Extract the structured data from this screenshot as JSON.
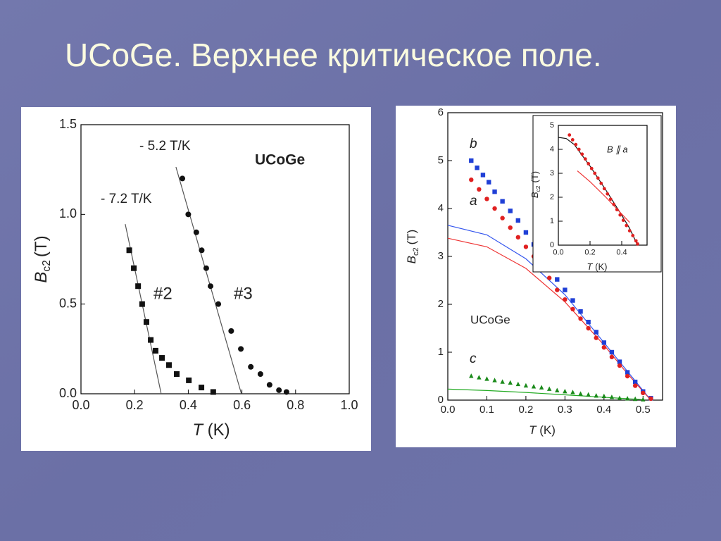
{
  "title": "UCoGe. Верхнее критическое поле.",
  "chart_data": [
    {
      "type": "scatter",
      "xlim": [
        0,
        1
      ],
      "ylim": [
        0,
        1.5
      ],
      "xticks": [
        {
          "value": 0,
          "label": "0.0"
        },
        {
          "value": 0.2,
          "label": "0.2"
        },
        {
          "value": 0.4,
          "label": "0.4"
        },
        {
          "value": 0.6,
          "label": "0.6"
        },
        {
          "value": 0.8,
          "label": "0.8"
        },
        {
          "value": 1,
          "label": "1.0"
        }
      ],
      "yticks": [
        {
          "value": 0,
          "label": "0.0"
        },
        {
          "value": 0.5,
          "label": "0.5"
        },
        {
          "value": 1,
          "label": "1.0"
        },
        {
          "value": 1.5,
          "label": "1.5"
        }
      ],
      "xlabel": {
        "symbol": "T",
        "unit": "(K)"
      },
      "ylabel": {
        "symbol": "B",
        "subscript": "c2",
        "unit": "(T)"
      },
      "series": [
        {
          "name": "#2",
          "color": "#111111",
          "marker": "square",
          "x": [
            0.18,
            0.197,
            0.213,
            0.228,
            0.244,
            0.26,
            0.278,
            0.302,
            0.328,
            0.357,
            0.402,
            0.449,
            0.493
          ],
          "values": [
            0.8,
            0.7,
            0.6,
            0.5,
            0.4,
            0.3,
            0.24,
            0.2,
            0.16,
            0.11,
            0.075,
            0.035,
            0.01
          ]
        },
        {
          "name": "#3",
          "color": "#111111",
          "marker": "circle",
          "x": [
            0.378,
            0.4,
            0.43,
            0.45,
            0.467,
            0.483,
            0.512,
            0.56,
            0.596,
            0.633,
            0.669,
            0.703,
            0.738,
            0.766
          ],
          "values": [
            1.2,
            1.0,
            0.9,
            0.8,
            0.7,
            0.6,
            0.5,
            0.35,
            0.25,
            0.15,
            0.11,
            0.05,
            0.02,
            0.01
          ]
        }
      ],
      "lines": [
        {
          "color": "#555555",
          "x": [
            0.165,
            0.299
          ],
          "y": [
            0.946,
            0
          ]
        },
        {
          "color": "#555555",
          "x": [
            0.354,
            0.598
          ],
          "y": [
            1.264,
            0
          ]
        }
      ],
      "annotations": [
        "- 5.2 T/K",
        "- 7.2 T/K",
        "UCoGe"
      ]
    },
    {
      "type": "scatter",
      "xlim": [
        0,
        0.55
      ],
      "ylim": [
        0,
        6
      ],
      "xticks": [
        {
          "value": 0,
          "label": "0.0"
        },
        {
          "value": 0.1,
          "label": "0.1"
        },
        {
          "value": 0.2,
          "label": "0.2"
        },
        {
          "value": 0.3,
          "label": "0.3"
        },
        {
          "value": 0.4,
          "label": "0.4"
        },
        {
          "value": 0.5,
          "label": "0.5"
        }
      ],
      "yticks": [
        0,
        1,
        2,
        3,
        4,
        5,
        6
      ],
      "xlabel": {
        "symbol": "T",
        "unit": "(K)"
      },
      "ylabel": {
        "symbol": "B",
        "subscript": "c2",
        "unit": "(T)"
      },
      "series": [
        {
          "name": "b",
          "color": "#1f3fd6",
          "marker": "square",
          "x": [
            0.06,
            0.075,
            0.09,
            0.105,
            0.12,
            0.14,
            0.16,
            0.18,
            0.2,
            0.22,
            0.24,
            0.26,
            0.28,
            0.3,
            0.32,
            0.34,
            0.36,
            0.38,
            0.4,
            0.42,
            0.44,
            0.46,
            0.48,
            0.5,
            0.52
          ],
          "values": [
            5.0,
            4.85,
            4.7,
            4.55,
            4.35,
            4.15,
            3.95,
            3.75,
            3.5,
            3.25,
            3.0,
            2.75,
            2.52,
            2.3,
            2.08,
            1.85,
            1.63,
            1.42,
            1.2,
            1.0,
            0.8,
            0.58,
            0.38,
            0.18,
            0.04
          ]
        },
        {
          "name": "a",
          "color": "#e02020",
          "marker": "circle",
          "x": [
            0.06,
            0.08,
            0.1,
            0.12,
            0.14,
            0.16,
            0.18,
            0.2,
            0.22,
            0.24,
            0.26,
            0.28,
            0.3,
            0.32,
            0.34,
            0.36,
            0.38,
            0.4,
            0.42,
            0.44,
            0.46,
            0.48,
            0.5,
            0.52
          ],
          "values": [
            4.6,
            4.4,
            4.2,
            4.0,
            3.8,
            3.6,
            3.4,
            3.2,
            3.0,
            2.8,
            2.55,
            2.3,
            2.1,
            1.9,
            1.7,
            1.5,
            1.3,
            1.1,
            0.9,
            0.72,
            0.5,
            0.3,
            0.15,
            0.03
          ]
        },
        {
          "name": "c",
          "color": "#1a8a1a",
          "marker": "triangle",
          "x": [
            0.06,
            0.08,
            0.1,
            0.12,
            0.14,
            0.16,
            0.18,
            0.2,
            0.22,
            0.24,
            0.26,
            0.28,
            0.3,
            0.32,
            0.34,
            0.36,
            0.38,
            0.4,
            0.42,
            0.44,
            0.46,
            0.48,
            0.5
          ],
          "values": [
            0.5,
            0.47,
            0.44,
            0.41,
            0.38,
            0.36,
            0.33,
            0.3,
            0.28,
            0.26,
            0.23,
            0.2,
            0.18,
            0.16,
            0.13,
            0.11,
            0.09,
            0.08,
            0.06,
            0.04,
            0.03,
            0.02,
            0.01
          ]
        }
      ],
      "lines": [
        {
          "color": "#3355ee",
          "x": [
            0,
            0.1,
            0.2,
            0.3,
            0.4,
            0.45,
            0.5,
            0.52
          ],
          "y": [
            3.65,
            3.45,
            2.95,
            2.2,
            1.2,
            0.7,
            0.2,
            0
          ]
        },
        {
          "color": "#ee3333",
          "x": [
            0,
            0.1,
            0.2,
            0.3,
            0.4,
            0.45,
            0.5,
            0.52
          ],
          "y": [
            3.38,
            3.2,
            2.75,
            2.05,
            1.15,
            0.65,
            0.18,
            0
          ]
        },
        {
          "color": "#22aa22",
          "x": [
            0,
            0.1,
            0.2,
            0.3,
            0.4,
            0.5
          ],
          "y": [
            0.23,
            0.2,
            0.16,
            0.11,
            0.06,
            0.01
          ]
        }
      ],
      "annotations": [
        "UCoGe"
      ]
    },
    {
      "type": "scatter",
      "xlim": [
        0,
        0.56
      ],
      "ylim": [
        0,
        5
      ],
      "xticks": [
        {
          "value": 0,
          "label": "0.0"
        },
        {
          "value": 0.2,
          "label": "0.2"
        },
        {
          "value": 0.4,
          "label": "0.4"
        }
      ],
      "yticks": [
        0,
        1,
        2,
        3,
        4,
        5
      ],
      "xlabel": {
        "symbol": "T",
        "unit": "(K)"
      },
      "ylabel": {
        "symbol": "B",
        "subscript": "c2",
        "unit": "(T)"
      },
      "series": [
        {
          "color": "#e02020",
          "marker": "circle",
          "x": [
            0.07,
            0.09,
            0.11,
            0.13,
            0.15,
            0.17,
            0.19,
            0.21,
            0.23,
            0.25,
            0.27,
            0.29,
            0.31,
            0.33,
            0.35,
            0.37,
            0.39,
            0.41,
            0.43,
            0.45,
            0.47,
            0.49,
            0.5
          ],
          "values": [
            4.6,
            4.4,
            4.2,
            4.0,
            3.8,
            3.6,
            3.4,
            3.2,
            3.0,
            2.8,
            2.58,
            2.36,
            2.14,
            1.92,
            1.7,
            1.48,
            1.26,
            1.04,
            0.82,
            0.6,
            0.4,
            0.18,
            0.05
          ]
        }
      ],
      "lines": [
        {
          "color": "#111111",
          "x": [
            0.0,
            0.05,
            0.1,
            0.2,
            0.3,
            0.4,
            0.45,
            0.5
          ],
          "y": [
            4.5,
            4.45,
            4.2,
            3.3,
            2.3,
            1.25,
            0.7,
            0
          ]
        },
        {
          "color": "#ee3333",
          "x": [
            0.12,
            0.2,
            0.3,
            0.4,
            0.45
          ],
          "y": [
            3.1,
            2.65,
            2.0,
            1.3,
            0.95
          ]
        }
      ],
      "annotations": [
        "B ∥ a"
      ]
    }
  ]
}
